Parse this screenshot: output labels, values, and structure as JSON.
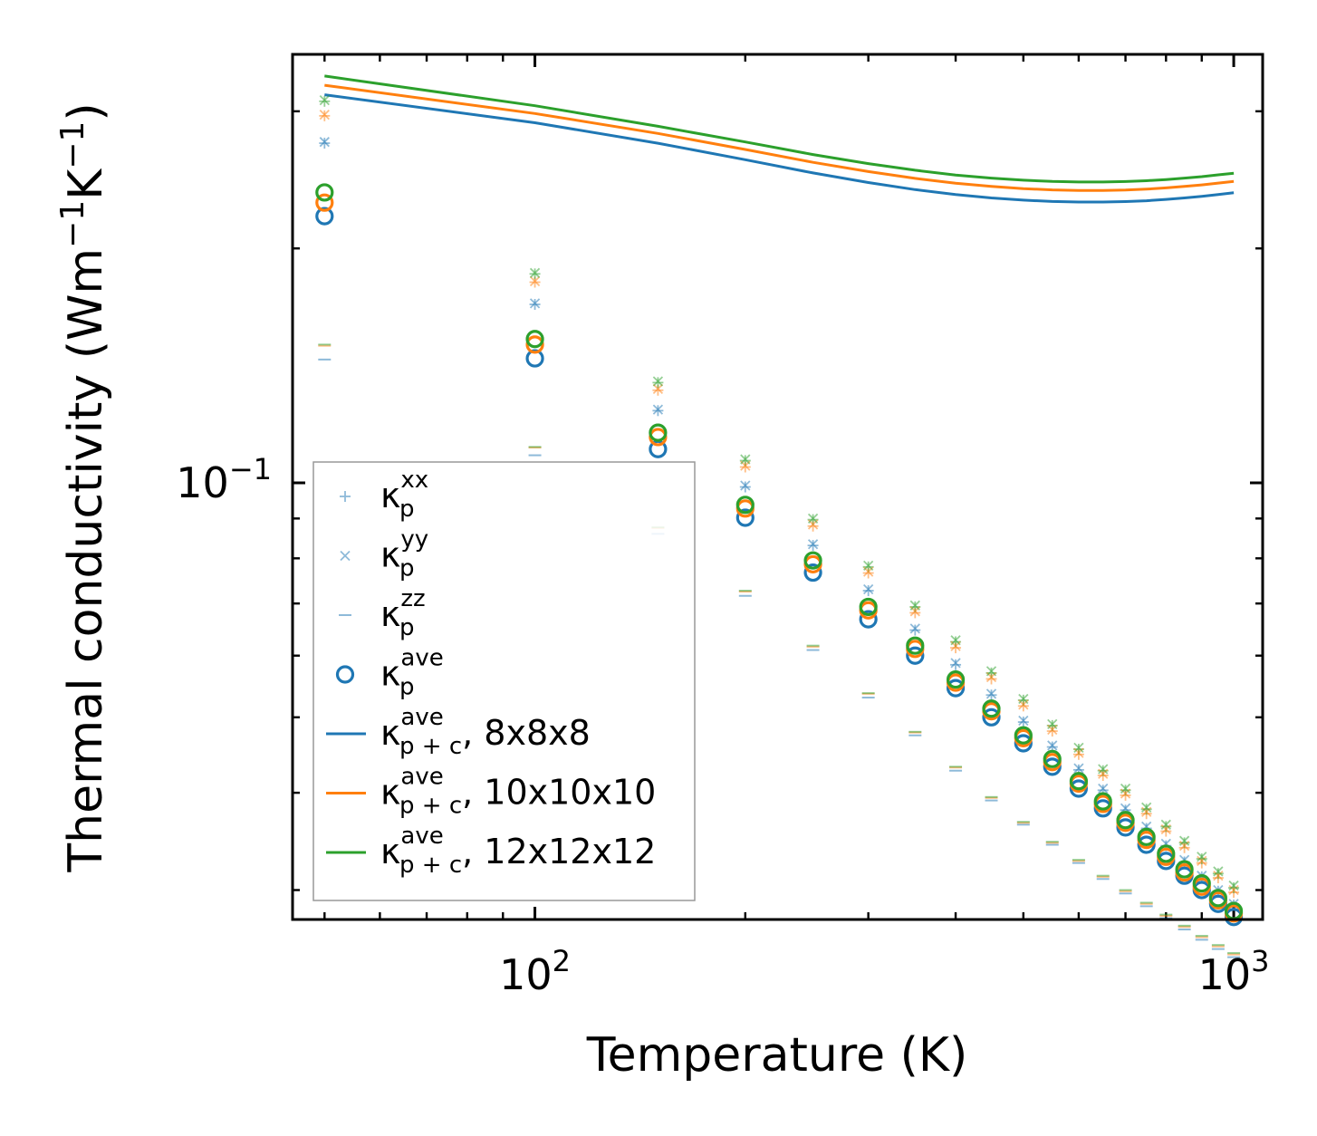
{
  "chart_data": {
    "type": "scatter",
    "title": "",
    "xlabel": "Temperature (K)",
    "ylabel_main": "Thermal conductivity (Wm",
    "ylabel_sup1": "−1",
    "ylabel_mid": "K",
    "ylabel_sup2": "−1",
    "ylabel_end": ")",
    "xscale": "log",
    "yscale": "log",
    "xlim": [
      45,
      1100
    ],
    "ylim": [
      0.0275,
      0.355
    ],
    "x_ticks": [
      {
        "base": "10",
        "exp": "2"
      },
      {
        "base": "10",
        "exp": "3"
      }
    ],
    "y_ticks": [
      {
        "base": "10",
        "exp": "−1"
      }
    ],
    "x": [
      50,
      100,
      150,
      200,
      250,
      300,
      350,
      400,
      450,
      500,
      550,
      600,
      650,
      700,
      750,
      800,
      850,
      900,
      950,
      1000
    ],
    "colors": {
      "c8": "#1f77b4",
      "c10": "#ff7f0e",
      "c12": "#2ca02c"
    },
    "series": [
      {
        "name": "κp^xx 8x8x8",
        "kind": "plus",
        "color": "#1f77b4",
        "values": [
          0.273,
          0.1695,
          0.1238,
          0.0988,
          0.0831,
          0.0727,
          0.0647,
          0.0584,
          0.0534,
          0.0493,
          0.0458,
          0.0428,
          0.0403,
          0.038,
          0.036,
          0.0342,
          0.0326,
          0.0312,
          0.0299,
          0.0287
        ]
      },
      {
        "name": "κp^xx 10x10x10",
        "kind": "plus",
        "color": "#ff7f0e",
        "values": [
          0.296,
          0.181,
          0.1315,
          0.1048,
          0.088,
          0.0766,
          0.0681,
          0.0614,
          0.056,
          0.0517,
          0.048,
          0.0448,
          0.0421,
          0.0397,
          0.0376,
          0.0357,
          0.034,
          0.0325,
          0.0311,
          0.0298
        ]
      },
      {
        "name": "κp^xx 12x12x12",
        "kind": "plus",
        "color": "#2ca02c",
        "values": [
          0.309,
          0.1855,
          0.1345,
          0.1068,
          0.0897,
          0.078,
          0.0693,
          0.0625,
          0.057,
          0.0526,
          0.0488,
          0.0455,
          0.0427,
          0.0403,
          0.0381,
          0.0362,
          0.0345,
          0.0329,
          0.0315,
          0.0302
        ]
      },
      {
        "name": "κp^yy 8x8x8",
        "kind": "x",
        "color": "#1f77b4",
        "values": [
          0.274,
          0.17,
          0.1242,
          0.0992,
          0.0834,
          0.073,
          0.065,
          0.0587,
          0.0536,
          0.0495,
          0.046,
          0.043,
          0.0405,
          0.0382,
          0.0362,
          0.0344,
          0.0328,
          0.0313,
          0.03,
          0.0288
        ]
      },
      {
        "name": "κp^yy 10x10x10",
        "kind": "x",
        "color": "#ff7f0e",
        "values": [
          0.297,
          0.1815,
          0.132,
          0.1052,
          0.0884,
          0.0769,
          0.0684,
          0.0617,
          0.0563,
          0.0519,
          0.0482,
          0.045,
          0.0423,
          0.0399,
          0.0378,
          0.0359,
          0.0342,
          0.0327,
          0.0313,
          0.03
        ]
      },
      {
        "name": "κp^yy 12x12x12",
        "kind": "x",
        "color": "#2ca02c",
        "values": [
          0.31,
          0.186,
          0.135,
          0.1072,
          0.09,
          0.0783,
          0.0696,
          0.0628,
          0.0573,
          0.0528,
          0.049,
          0.0457,
          0.0429,
          0.0405,
          0.0383,
          0.0364,
          0.0347,
          0.0331,
          0.0317,
          0.0304
        ]
      },
      {
        "name": "κp^zz 8x8x8",
        "kind": "dash",
        "color": "#1f77b4",
        "values": [
          0.144,
          0.1085,
          0.086,
          0.0716,
          0.061,
          0.053,
          0.0474,
          0.0427,
          0.0391,
          0.0364,
          0.0343,
          0.0325,
          0.031,
          0.0297,
          0.0286,
          0.0276,
          0.0267,
          0.0259,
          0.0252,
          0.0246
        ]
      },
      {
        "name": "κp^zz 10x10x10",
        "kind": "dash",
        "color": "#ff7f0e",
        "values": [
          0.15,
          0.111,
          0.0875,
          0.0725,
          0.0616,
          0.0536,
          0.0478,
          0.0431,
          0.0394,
          0.0366,
          0.0345,
          0.0327,
          0.0312,
          0.0299,
          0.0288,
          0.0278,
          0.0269,
          0.0261,
          0.0254,
          0.0248
        ]
      },
      {
        "name": "κp^zz 12x12x12",
        "kind": "dash",
        "color": "#2ca02c",
        "values": [
          0.1505,
          0.1112,
          0.0877,
          0.0727,
          0.0618,
          0.0537,
          0.0479,
          0.0432,
          0.0395,
          0.0367,
          0.0346,
          0.0328,
          0.0313,
          0.03,
          0.0289,
          0.0279,
          0.027,
          0.0262,
          0.0255,
          0.0249
        ]
      },
      {
        "name": "κp^ave 8x8x8",
        "kind": "circle",
        "color": "#1f77b4",
        "values": [
          0.22,
          0.1445,
          0.1105,
          0.0902,
          0.0767,
          0.0668,
          0.06,
          0.0545,
          0.05,
          0.0463,
          0.0432,
          0.0405,
          0.0382,
          0.0361,
          0.0343,
          0.0327,
          0.0313,
          0.03,
          0.0288,
          0.0277
        ]
      },
      {
        "name": "κp^ave 10x10x10",
        "kind": "circle",
        "color": "#ff7f0e",
        "values": [
          0.229,
          0.1505,
          0.1145,
          0.0927,
          0.0786,
          0.0686,
          0.0612,
          0.0554,
          0.0509,
          0.047,
          0.0438,
          0.0411,
          0.0387,
          0.0366,
          0.0348,
          0.0331,
          0.0316,
          0.0303,
          0.0291,
          0.028
        ]
      },
      {
        "name": "κp^ave 12x12x12",
        "kind": "circle",
        "color": "#2ca02c",
        "values": [
          0.236,
          0.153,
          0.116,
          0.0937,
          0.0795,
          0.0693,
          0.0618,
          0.0559,
          0.0513,
          0.0474,
          0.0442,
          0.0414,
          0.039,
          0.0369,
          0.0351,
          0.0334,
          0.0319,
          0.0306,
          0.0293,
          0.0282
        ]
      }
    ],
    "lines": [
      {
        "name": "κp+c^ave, 8x8x8",
        "color": "#1f77b4",
        "x": [
          50,
          100,
          150,
          200,
          250,
          300,
          350,
          400,
          450,
          500,
          550,
          600,
          650,
          700,
          750,
          800,
          850,
          900,
          950,
          1000
        ],
        "values": [
          0.315,
          0.29,
          0.273,
          0.26,
          0.25,
          0.243,
          0.238,
          0.2345,
          0.2322,
          0.2307,
          0.2298,
          0.2294,
          0.2294,
          0.2297,
          0.2303,
          0.2312,
          0.2322,
          0.2333,
          0.2346,
          0.2358
        ]
      },
      {
        "name": "κp+c^ave, 10x10x10",
        "color": "#ff7f0e",
        "x": [
          50,
          100,
          150,
          200,
          250,
          300,
          350,
          400,
          450,
          500,
          550,
          600,
          650,
          700,
          750,
          800,
          850,
          900,
          950,
          1000
        ],
        "values": [
          0.324,
          0.298,
          0.281,
          0.268,
          0.258,
          0.251,
          0.246,
          0.2425,
          0.2402,
          0.2387,
          0.2378,
          0.2374,
          0.2374,
          0.2377,
          0.2383,
          0.2392,
          0.2402,
          0.2413,
          0.2426,
          0.2438
        ]
      },
      {
        "name": "κp+c^ave, 12x12x12",
        "color": "#2ca02c",
        "x": [
          50,
          100,
          150,
          200,
          250,
          300,
          350,
          400,
          450,
          500,
          550,
          600,
          650,
          700,
          750,
          800,
          850,
          900,
          950,
          1000
        ],
        "values": [
          0.333,
          0.305,
          0.287,
          0.274,
          0.264,
          0.257,
          0.252,
          0.2485,
          0.2462,
          0.2447,
          0.2438,
          0.2434,
          0.2434,
          0.2437,
          0.2443,
          0.2452,
          0.2462,
          0.2473,
          0.2486,
          0.2498
        ]
      }
    ],
    "legend": {
      "location": "lower-left",
      "entries": [
        {
          "marker": "plus",
          "color": "#1f77b4",
          "base": "κ",
          "sup": "xx",
          "sub": "p",
          "suffix": ""
        },
        {
          "marker": "x",
          "color": "#1f77b4",
          "base": "κ",
          "sup": "yy",
          "sub": "p",
          "suffix": ""
        },
        {
          "marker": "dash",
          "color": "#1f77b4",
          "base": "κ",
          "sup": "zz",
          "sub": "p",
          "suffix": ""
        },
        {
          "marker": "circle",
          "color": "#1f77b4",
          "base": "κ",
          "sup": "ave",
          "sub": "p",
          "suffix": ""
        },
        {
          "marker": "line",
          "color": "#1f77b4",
          "base": "κ",
          "sup": "ave",
          "sub": "p + c",
          "suffix": ", 8x8x8"
        },
        {
          "marker": "line",
          "color": "#ff7f0e",
          "base": "κ",
          "sup": "ave",
          "sub": "p + c",
          "suffix": ", 10x10x10"
        },
        {
          "marker": "line",
          "color": "#2ca02c",
          "base": "κ",
          "sup": "ave",
          "sub": "p + c",
          "suffix": ", 12x12x12"
        }
      ]
    }
  }
}
